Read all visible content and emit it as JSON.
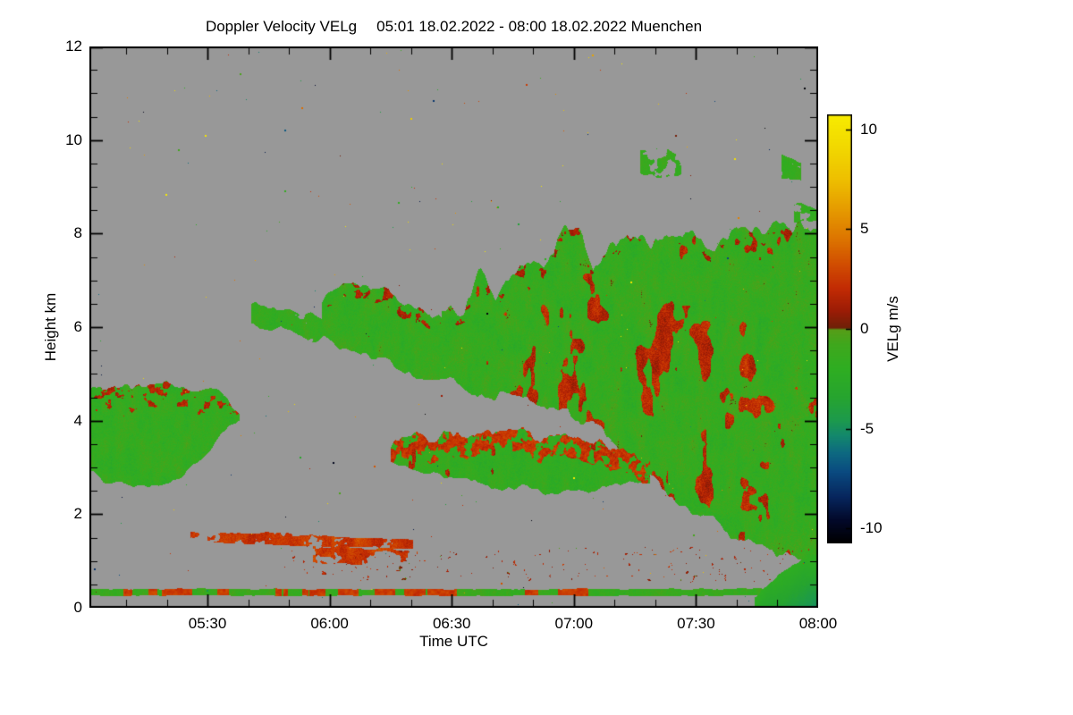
{
  "chart_data": {
    "type": "heatmap",
    "title": "Doppler Velocity VELg",
    "subtitle": "05:01 18.02.2022 - 08:00 18.02.2022 Muenchen",
    "xlabel": "Time UTC",
    "ylabel": "Height km",
    "x_range_hours": [
      5.0167,
      8.0
    ],
    "y_range_km": [
      0,
      12
    ],
    "x_ticks": [
      {
        "pos": 5.5,
        "label": "05:30"
      },
      {
        "pos": 6.0,
        "label": "06:00"
      },
      {
        "pos": 6.5,
        "label": "06:30"
      },
      {
        "pos": 7.0,
        "label": "07:00"
      },
      {
        "pos": 7.5,
        "label": "07:30"
      },
      {
        "pos": 8.0,
        "label": "08:00"
      }
    ],
    "x_minor_step_hours": 0.1666667,
    "y_ticks": [
      {
        "pos": 0,
        "label": "0"
      },
      {
        "pos": 2,
        "label": "2"
      },
      {
        "pos": 4,
        "label": "4"
      },
      {
        "pos": 6,
        "label": "6"
      },
      {
        "pos": 8,
        "label": "8"
      },
      {
        "pos": 10,
        "label": "10"
      },
      {
        "pos": 12,
        "label": "12"
      }
    ],
    "y_minor_step_km": 0.5,
    "no_data_color": "#989898",
    "frame_color": "#000000",
    "colorbar": {
      "label": "VELg m/s",
      "min": -10.75,
      "max": 10.75,
      "ticks": [
        {
          "pos": 10,
          "label": "10"
        },
        {
          "pos": 5,
          "label": "5"
        },
        {
          "pos": 0,
          "label": "0"
        },
        {
          "pos": -5,
          "label": "-5"
        },
        {
          "pos": -10,
          "label": "-10"
        }
      ]
    },
    "colormap_stops": [
      [
        -10.75,
        "#000000"
      ],
      [
        -9.6,
        "#03092a"
      ],
      [
        -8.4,
        "#07275e"
      ],
      [
        -7.2,
        "#0a4a80"
      ],
      [
        -6.2,
        "#0e6a80"
      ],
      [
        -5.4,
        "#13876e"
      ],
      [
        -4.6,
        "#1d9a4d"
      ],
      [
        -3.4,
        "#27a52f"
      ],
      [
        -2.0,
        "#2fae22"
      ],
      [
        -0.8,
        "#3fa81d"
      ],
      [
        -0.05,
        "#579e18"
      ],
      [
        0.05,
        "#6f2008"
      ],
      [
        0.9,
        "#9c1c06"
      ],
      [
        2.0,
        "#c22b04"
      ],
      [
        3.2,
        "#d14d02"
      ],
      [
        4.5,
        "#dd7500"
      ],
      [
        6.0,
        "#e69c00"
      ],
      [
        7.5,
        "#eec000"
      ],
      [
        9.2,
        "#f2da00"
      ],
      [
        10.75,
        "#f8ec00"
      ]
    ],
    "regions": [
      {
        "name": "patch-train-upper",
        "pts": [
          [
            5.68,
            6.05,
            6.45
          ],
          [
            5.74,
            5.9,
            6.55
          ],
          [
            5.8,
            5.95,
            6.45
          ],
          [
            5.87,
            5.78,
            6.3
          ],
          [
            5.94,
            5.72,
            6.2
          ],
          [
            5.99,
            5.8,
            6.1
          ]
        ],
        "value": -1.4,
        "noise": 1.0,
        "jit": 1.4,
        "rag": 0.22,
        "dash": {
          "scale": 0.1,
          "thr": 0.3
        }
      },
      {
        "name": "mid-cloud",
        "pts": [
          [
            5.97,
            5.9,
            6.5
          ],
          [
            6.05,
            5.5,
            6.95
          ],
          [
            6.12,
            5.4,
            7.0
          ],
          [
            6.2,
            5.3,
            6.8
          ],
          [
            6.3,
            5.1,
            6.55
          ],
          [
            6.4,
            4.95,
            6.35
          ],
          [
            6.46,
            4.9,
            6.25
          ]
        ],
        "value": -1.5,
        "noise": 1.1,
        "jit": 1.5,
        "rag": 0.3,
        "edge": {
          "depth": 0.3,
          "value": 1.3,
          "thr": 0.66,
          "noise": 1.0
        }
      },
      {
        "name": "left-low-cloud",
        "pts": [
          [
            5.017,
            2.9,
            4.7
          ],
          [
            5.1,
            2.7,
            4.8
          ],
          [
            5.2,
            2.55,
            4.82
          ],
          [
            5.3,
            2.6,
            4.8
          ],
          [
            5.4,
            2.9,
            4.75
          ],
          [
            5.5,
            3.3,
            4.6
          ],
          [
            5.57,
            3.8,
            4.45
          ],
          [
            5.63,
            4.0,
            4.28
          ]
        ],
        "value": -1.6,
        "noise": 1.1,
        "jit": 1.5,
        "rag": 0.25,
        "edge": {
          "depth": 0.5,
          "value": 1.6,
          "thr": 0.6,
          "noise": 1.1
        }
      },
      {
        "name": "big-cloud-mass",
        "pts": [
          [
            6.46,
            4.9,
            6.3
          ],
          [
            6.55,
            4.7,
            6.55
          ],
          [
            6.62,
            4.6,
            7.35
          ],
          [
            6.68,
            4.55,
            6.6
          ],
          [
            6.78,
            4.45,
            7.5
          ],
          [
            6.85,
            4.4,
            7.2
          ],
          [
            6.95,
            4.25,
            7.9
          ],
          [
            7.02,
            4.1,
            7.95
          ],
          [
            7.08,
            3.9,
            7.2
          ],
          [
            7.15,
            3.5,
            7.95
          ],
          [
            7.22,
            3.2,
            8.0
          ],
          [
            7.3,
            2.9,
            7.5
          ],
          [
            7.38,
            2.55,
            7.9
          ],
          [
            7.48,
            2.15,
            8.0
          ],
          [
            7.58,
            1.85,
            7.9
          ],
          [
            7.68,
            1.45,
            8.05
          ],
          [
            7.78,
            1.15,
            8.2
          ],
          [
            7.88,
            1.0,
            8.25
          ],
          [
            8.0,
            0.9,
            8.15
          ]
        ],
        "value": -1.5,
        "noise": 1.2,
        "jit": 1.6,
        "rag": 0.45,
        "patch": {
          "scale": 0.045,
          "thr": 0.67,
          "add": 3.2
        },
        "edge": {
          "depth": 0.25,
          "value": 1.2,
          "thr": 0.7,
          "noise": 1.0
        }
      },
      {
        "name": "mid-low-cloud",
        "pts": [
          [
            6.25,
            3.05,
            3.5
          ],
          [
            6.35,
            2.9,
            3.65
          ],
          [
            6.45,
            2.8,
            3.75
          ],
          [
            6.6,
            2.65,
            3.8
          ],
          [
            6.75,
            2.55,
            3.75
          ],
          [
            6.9,
            2.5,
            3.65
          ],
          [
            7.05,
            2.55,
            3.5
          ],
          [
            7.2,
            2.65,
            3.35
          ],
          [
            7.31,
            2.75,
            3.1
          ]
        ],
        "value": -1.7,
        "noise": 1.0,
        "jit": 1.5,
        "rag": 0.3,
        "edge": {
          "depth": 0.45,
          "value": 2.3,
          "thr": 0.44,
          "noise": 1.2
        },
        "patch": {
          "scale": 0.08,
          "thr": 0.8,
          "add": 3.0
        }
      },
      {
        "name": "streak-1500m",
        "pts": [
          [
            5.43,
            1.42,
            1.6
          ],
          [
            5.6,
            1.38,
            1.62
          ],
          [
            5.8,
            1.33,
            1.58
          ],
          [
            6.0,
            1.3,
            1.52
          ],
          [
            6.2,
            1.28,
            1.48
          ],
          [
            6.34,
            1.27,
            1.45
          ]
        ],
        "value": 2.4,
        "noise": 1.2,
        "jit": 1.2,
        "rag": 0.05,
        "dash": {
          "scale": 0.09,
          "thr": 0.42
        }
      },
      {
        "name": "streak-1100m",
        "pts": [
          [
            5.93,
            0.98,
            1.28
          ],
          [
            6.1,
            0.92,
            1.3
          ],
          [
            6.25,
            0.95,
            1.25
          ],
          [
            6.36,
            1.0,
            1.2
          ]
        ],
        "value": 2.6,
        "noise": 1.1,
        "jit": 1.2,
        "rag": 0.08,
        "dash": {
          "scale": 0.08,
          "thr": 0.5
        }
      },
      {
        "name": "speckle-band-low",
        "pts": [
          [
            5.8,
            0.6,
            1.25
          ],
          [
            8.0,
            0.55,
            1.3
          ]
        ],
        "value": 1.4,
        "noise": 2.4,
        "jit": 1.5,
        "rag": 0.1,
        "dash": {
          "scale": 0.28,
          "thr": 0.78
        }
      },
      {
        "name": "surface-layer",
        "pts": [
          [
            5.017,
            0.26,
            0.4
          ],
          [
            8.0,
            0.26,
            0.4
          ]
        ],
        "value": -1.3,
        "noise": 0.9,
        "jit": 1.3,
        "rag": 0.03,
        "mix": {
          "scale": 0.055,
          "thr": 0.55,
          "alt": 2.6,
          "altnoise": 1.2
        }
      },
      {
        "name": "wisp-9km-a",
        "pts": [
          [
            7.27,
            9.3,
            9.8
          ],
          [
            7.36,
            9.15,
            9.85
          ],
          [
            7.44,
            9.25,
            9.6
          ]
        ],
        "value": -1.3,
        "noise": 0.9,
        "jit": 1.0,
        "rag": 0.15,
        "dash": {
          "scale": 0.1,
          "thr": 0.45
        }
      },
      {
        "name": "wisp-9km-b",
        "pts": [
          [
            7.85,
            9.2,
            9.65
          ],
          [
            7.93,
            9.15,
            9.5
          ]
        ],
        "value": -1.3,
        "noise": 0.9,
        "jit": 1.0,
        "rag": 0.12,
        "dash": {
          "scale": 0.12,
          "thr": 0.4
        }
      },
      {
        "name": "wisp-8km",
        "pts": [
          [
            7.9,
            8.25,
            8.6
          ],
          [
            8.0,
            8.2,
            8.5
          ]
        ],
        "value": -1.5,
        "noise": 0.9,
        "jit": 1.0,
        "rag": 0.12,
        "dash": {
          "scale": 0.1,
          "thr": 0.3
        }
      },
      {
        "name": "boundary-layer-teal",
        "pts": [
          [
            7.74,
            0.0,
            0.2
          ],
          [
            7.8,
            0.0,
            0.5
          ],
          [
            7.86,
            0.0,
            0.8
          ],
          [
            7.93,
            0.0,
            1.0
          ],
          [
            8.0,
            0.0,
            1.15
          ]
        ],
        "value": -2.0,
        "vgrad": -2.6,
        "noise": 0.4,
        "jit": 0.3,
        "rag": 0.05
      }
    ],
    "speckles": {
      "count": 260,
      "seed": 77
    }
  }
}
